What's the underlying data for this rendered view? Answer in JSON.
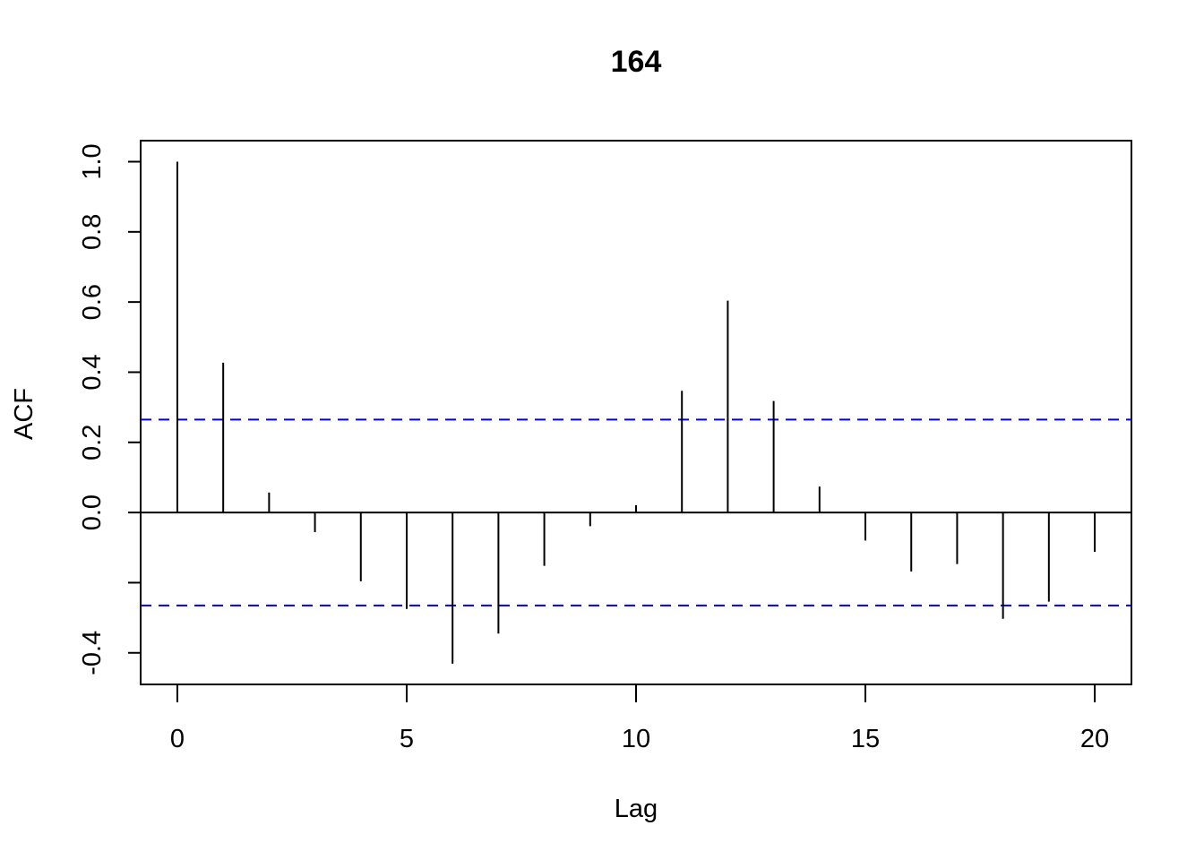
{
  "chart_data": {
    "type": "bar",
    "title": "164",
    "xlabel": "Lag",
    "ylabel": "ACF",
    "xlim": [
      -0.8,
      20.8
    ],
    "ylim": [
      -0.49,
      1.06
    ],
    "x_ticks": [
      0,
      5,
      10,
      15,
      20
    ],
    "x_tick_labels": [
      "0",
      "5",
      "10",
      "15",
      "20"
    ],
    "y_ticks": [
      -0.4,
      -0.2,
      0.0,
      0.2,
      0.4,
      0.6,
      0.8,
      1.0
    ],
    "y_tick_labels": [
      "-0.4",
      "",
      "0.0",
      "0.2",
      "0.4",
      "0.6",
      "0.8",
      "1.0"
    ],
    "lags": [
      0,
      1,
      2,
      3,
      4,
      5,
      6,
      7,
      8,
      9,
      10,
      11,
      12,
      13,
      14,
      15,
      16,
      17,
      18,
      19,
      20
    ],
    "values": [
      1.0,
      0.427,
      0.057,
      -0.056,
      -0.196,
      -0.275,
      -0.431,
      -0.345,
      -0.152,
      -0.039,
      0.021,
      0.347,
      0.604,
      0.318,
      0.074,
      -0.08,
      -0.168,
      -0.147,
      -0.303,
      -0.254,
      -0.112
    ],
    "confidence_bounds": [
      0.265,
      -0.265
    ],
    "grid": false,
    "colors": {
      "bars": "#000000",
      "bounds": "#0000ee",
      "zero_line": "#000000"
    }
  }
}
